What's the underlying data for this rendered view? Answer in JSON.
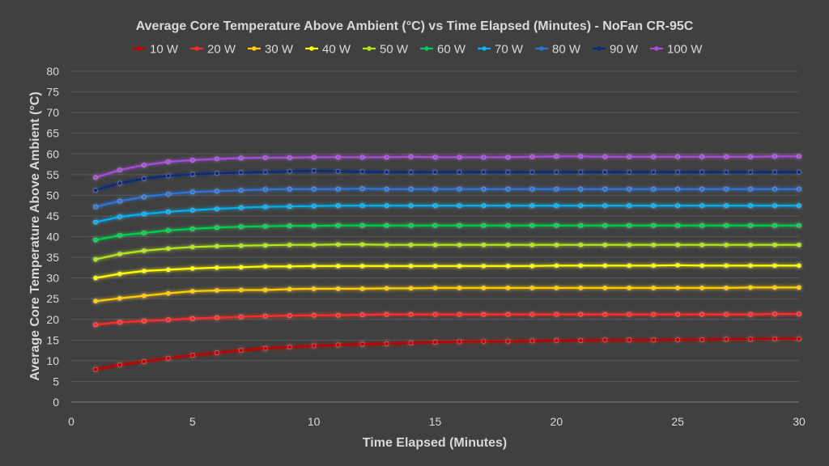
{
  "chart_data": {
    "type": "line",
    "title": "Average Core Temperature Above Ambient (°C) vs Time Elapsed (Minutes) - NoFan CR-95C",
    "xlabel": "Time Elapsed (Minutes)",
    "ylabel": "Average Core Temperature Above Ambient (°C)",
    "xlim": [
      0,
      30
    ],
    "ylim": [
      0,
      80
    ],
    "x_ticks": [
      0,
      5,
      10,
      15,
      20,
      25,
      30
    ],
    "y_ticks": [
      0,
      5,
      10,
      15,
      20,
      25,
      30,
      35,
      40,
      45,
      50,
      55,
      60,
      65,
      70,
      75,
      80
    ],
    "grid": true,
    "legend_position": "top",
    "background": "#404040",
    "x": [
      1,
      2,
      3,
      4,
      5,
      6,
      7,
      8,
      9,
      10,
      11,
      12,
      13,
      14,
      15,
      16,
      17,
      18,
      19,
      20,
      21,
      22,
      23,
      24,
      25,
      26,
      27,
      28,
      29,
      30
    ],
    "series": [
      {
        "name": "10 W",
        "color": "#c00000",
        "values": [
          7.9,
          9.0,
          9.8,
          10.6,
          11.3,
          11.9,
          12.5,
          13.0,
          13.3,
          13.6,
          13.8,
          14.0,
          14.1,
          14.3,
          14.5,
          14.6,
          14.7,
          14.7,
          14.8,
          14.9,
          14.9,
          15.0,
          15.0,
          15.0,
          15.1,
          15.1,
          15.2,
          15.2,
          15.3,
          15.3
        ]
      },
      {
        "name": "20 W",
        "color": "#ff2a2a",
        "values": [
          18.7,
          19.3,
          19.6,
          19.9,
          20.2,
          20.4,
          20.6,
          20.8,
          20.9,
          21.0,
          21.0,
          21.1,
          21.2,
          21.2,
          21.2,
          21.2,
          21.2,
          21.2,
          21.2,
          21.2,
          21.2,
          21.2,
          21.2,
          21.2,
          21.2,
          21.2,
          21.2,
          21.2,
          21.3,
          21.3
        ]
      },
      {
        "name": "30 W",
        "color": "#ffcc00",
        "values": [
          24.4,
          25.1,
          25.7,
          26.3,
          26.8,
          27.0,
          27.1,
          27.1,
          27.3,
          27.4,
          27.4,
          27.4,
          27.5,
          27.5,
          27.6,
          27.6,
          27.6,
          27.6,
          27.6,
          27.6,
          27.6,
          27.6,
          27.6,
          27.6,
          27.6,
          27.6,
          27.6,
          27.7,
          27.7,
          27.7
        ]
      },
      {
        "name": "40 W",
        "color": "#ffff00",
        "values": [
          30.0,
          31.0,
          31.7,
          32.0,
          32.3,
          32.5,
          32.6,
          32.8,
          32.8,
          32.9,
          32.9,
          32.9,
          32.9,
          32.9,
          32.9,
          32.9,
          32.9,
          32.9,
          32.9,
          33.0,
          33.0,
          33.0,
          33.0,
          33.0,
          33.1,
          33.0,
          33.0,
          33.0,
          33.0,
          33.0
        ]
      },
      {
        "name": "50 W",
        "color": "#b5e61d",
        "values": [
          34.5,
          35.8,
          36.6,
          37.1,
          37.5,
          37.7,
          37.8,
          37.9,
          38.0,
          38.0,
          38.1,
          38.1,
          38.0,
          38.0,
          38.0,
          38.0,
          38.0,
          38.0,
          38.0,
          38.0,
          38.0,
          38.0,
          38.0,
          38.0,
          38.0,
          38.0,
          38.0,
          38.0,
          38.0,
          38.0
        ]
      },
      {
        "name": "60 W",
        "color": "#00d050",
        "values": [
          39.2,
          40.3,
          40.9,
          41.5,
          41.9,
          42.2,
          42.4,
          42.5,
          42.6,
          42.6,
          42.7,
          42.7,
          42.7,
          42.7,
          42.7,
          42.7,
          42.7,
          42.7,
          42.7,
          42.7,
          42.7,
          42.7,
          42.7,
          42.7,
          42.7,
          42.7,
          42.7,
          42.7,
          42.7,
          42.7
        ]
      },
      {
        "name": "70 W",
        "color": "#00b0f0",
        "values": [
          43.5,
          44.8,
          45.5,
          46.0,
          46.4,
          46.7,
          47.0,
          47.2,
          47.3,
          47.4,
          47.5,
          47.5,
          47.5,
          47.5,
          47.5,
          47.5,
          47.5,
          47.5,
          47.5,
          47.5,
          47.5,
          47.5,
          47.5,
          47.5,
          47.5,
          47.5,
          47.5,
          47.5,
          47.5,
          47.5
        ]
      },
      {
        "name": "80 W",
        "color": "#2e75d6",
        "values": [
          47.2,
          48.6,
          49.6,
          50.3,
          50.8,
          51.0,
          51.2,
          51.4,
          51.5,
          51.5,
          51.5,
          51.6,
          51.5,
          51.5,
          51.5,
          51.5,
          51.5,
          51.5,
          51.5,
          51.5,
          51.5,
          51.5,
          51.5,
          51.5,
          51.5,
          51.5,
          51.5,
          51.5,
          51.5,
          51.5
        ]
      },
      {
        "name": "90 W",
        "color": "#0d2a7a",
        "values": [
          51.2,
          52.9,
          54.0,
          54.7,
          55.1,
          55.3,
          55.5,
          55.6,
          55.8,
          55.9,
          55.8,
          55.7,
          55.6,
          55.6,
          55.6,
          55.6,
          55.6,
          55.6,
          55.6,
          55.6,
          55.6,
          55.6,
          55.6,
          55.6,
          55.6,
          55.6,
          55.6,
          55.6,
          55.6,
          55.6
        ]
      },
      {
        "name": "100 W",
        "color": "#a64dd9",
        "values": [
          54.3,
          56.1,
          57.3,
          58.1,
          58.5,
          58.8,
          59.0,
          59.1,
          59.1,
          59.2,
          59.2,
          59.2,
          59.2,
          59.3,
          59.2,
          59.2,
          59.2,
          59.2,
          59.3,
          59.4,
          59.4,
          59.3,
          59.3,
          59.3,
          59.3,
          59.3,
          59.3,
          59.3,
          59.4,
          59.4
        ]
      }
    ]
  }
}
